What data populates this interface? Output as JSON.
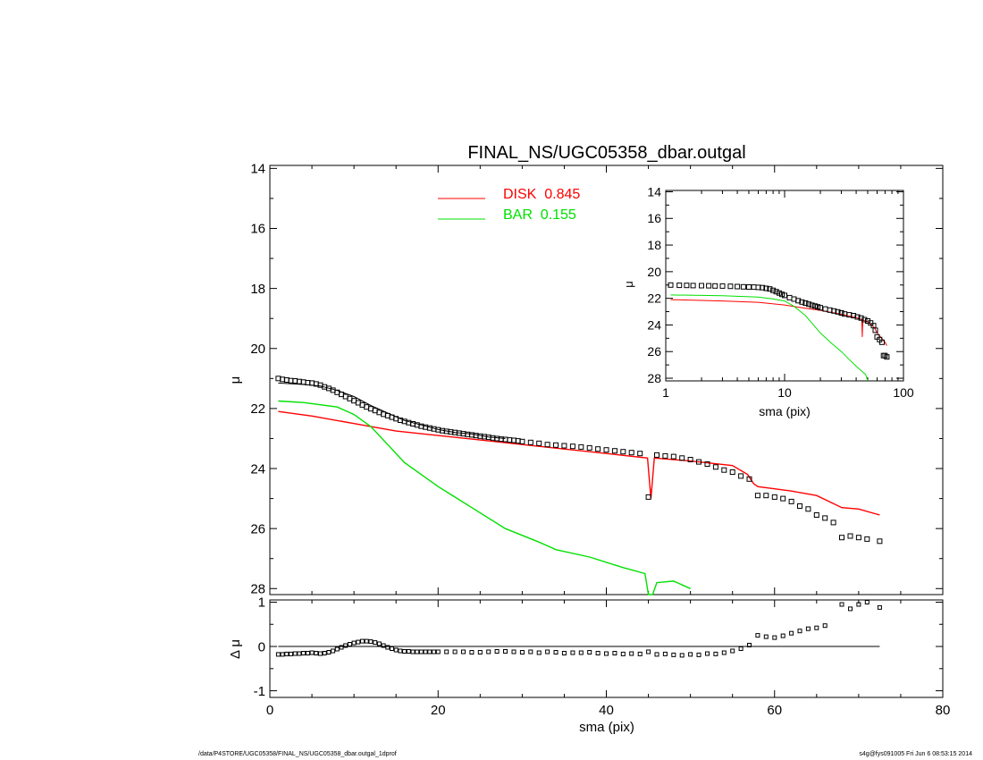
{
  "footer": {
    "left": "/data/P4STORE/UGC05358/FINAL_NS/UGC05358_dbar.outgal_1dprof",
    "right": "s4g@fys091005  Fri Jun  6 08:53:15 2014"
  },
  "colors": {
    "disk": "#ff0000",
    "bar": "#00e000",
    "data": "#000000"
  },
  "chart_data": [
    {
      "id": "main",
      "type": "line",
      "title": "FINAL_NS/UGC05358_dbar.outgal",
      "xlabel": "",
      "ylabel": "μ",
      "xlim": [
        0,
        80
      ],
      "ylim": [
        28.2,
        13.9
      ],
      "y_inverted": true,
      "xticks": [
        0,
        20,
        40,
        60,
        80
      ],
      "yticks": [
        14,
        16,
        18,
        20,
        22,
        24,
        26,
        28
      ],
      "legend": {
        "placement": "top-center",
        "entries": [
          {
            "label": "DISK  0.845",
            "color": "#ff0000"
          },
          {
            "label": "BAR  0.155",
            "color": "#00e000"
          }
        ]
      },
      "series": [
        {
          "name": "DISK",
          "color": "#ff0000",
          "style": "line",
          "x": [
            1,
            5,
            10,
            15,
            20,
            25,
            30,
            35,
            40,
            44.9,
            45.3,
            45.7,
            50,
            55,
            56.8,
            57.5,
            58,
            62,
            65,
            68,
            70,
            72.5
          ],
          "y": [
            22.1,
            22.25,
            22.5,
            22.75,
            22.9,
            23.05,
            23.2,
            23.35,
            23.5,
            23.65,
            25.0,
            23.65,
            23.75,
            23.9,
            24.2,
            24.5,
            24.6,
            24.75,
            24.9,
            25.3,
            25.35,
            25.55
          ]
        },
        {
          "name": "BAR",
          "color": "#00e000",
          "style": "line",
          "x": [
            1,
            4,
            8,
            10,
            12,
            14,
            16,
            20,
            24,
            28,
            32,
            32.8,
            34,
            38,
            42,
            44.6,
            45,
            45.5,
            46,
            48,
            50
          ],
          "y": [
            21.75,
            21.8,
            21.95,
            22.2,
            22.6,
            23.2,
            23.8,
            24.6,
            25.3,
            26.0,
            26.45,
            26.55,
            26.7,
            26.95,
            27.3,
            27.5,
            28.2,
            28.2,
            27.8,
            27.75,
            28.0
          ]
        },
        {
          "name": "total",
          "color": "#000000",
          "style": "thin-line",
          "x": [
            1,
            4,
            6,
            8,
            10,
            12,
            14,
            16,
            18,
            20,
            22,
            24,
            26,
            28
          ],
          "y": [
            21.15,
            21.2,
            21.25,
            21.4,
            21.6,
            21.9,
            22.15,
            22.4,
            22.55,
            22.7,
            22.8,
            22.85,
            22.95,
            23.0
          ]
        },
        {
          "name": "data",
          "color": "#000000",
          "style": "markers",
          "x": [
            1,
            1.5,
            2,
            2.5,
            3,
            3.5,
            4,
            4.5,
            5,
            5.5,
            6,
            6.5,
            7,
            7.5,
            8,
            8.5,
            9,
            9.5,
            10,
            10.5,
            11,
            11.5,
            12,
            12.5,
            13,
            13.5,
            14,
            14.5,
            15,
            15.5,
            16,
            16.5,
            17,
            17.5,
            18,
            18.5,
            19,
            19.5,
            20,
            20.5,
            21,
            21.5,
            22,
            22.5,
            23,
            23.5,
            24,
            24.5,
            25,
            25.5,
            26,
            26.5,
            27,
            27.5,
            28,
            28.5,
            29,
            29.5,
            30,
            31,
            32,
            33,
            34,
            35,
            36,
            37,
            38,
            39,
            40,
            41,
            42,
            43,
            44,
            45,
            46,
            47,
            48,
            49,
            50,
            51,
            52,
            53,
            54,
            55,
            56,
            57,
            58,
            59,
            60,
            61,
            62,
            63,
            64,
            65,
            66,
            67,
            68,
            69,
            70,
            71,
            72.5
          ],
          "y": [
            21.0,
            21.03,
            21.05,
            21.07,
            21.08,
            21.1,
            21.12,
            21.14,
            21.15,
            21.18,
            21.22,
            21.28,
            21.33,
            21.39,
            21.46,
            21.53,
            21.6,
            21.67,
            21.74,
            21.81,
            21.88,
            21.95,
            22.01,
            22.07,
            22.13,
            22.19,
            22.24,
            22.29,
            22.34,
            22.39,
            22.43,
            22.47,
            22.51,
            22.55,
            22.59,
            22.62,
            22.65,
            22.68,
            22.71,
            22.74,
            22.76,
            22.78,
            22.8,
            22.82,
            22.84,
            22.86,
            22.88,
            22.9,
            22.92,
            22.94,
            22.96,
            22.98,
            23.0,
            23.02,
            23.03,
            23.05,
            23.06,
            23.08,
            23.1,
            23.13,
            23.16,
            23.2,
            23.22,
            23.24,
            23.26,
            23.28,
            23.31,
            23.35,
            23.38,
            23.41,
            23.44,
            23.47,
            23.5,
            24.95,
            23.55,
            23.58,
            23.6,
            23.65,
            23.7,
            23.78,
            23.85,
            23.95,
            24.05,
            24.12,
            24.25,
            24.35,
            24.9,
            24.9,
            24.95,
            25.0,
            25.1,
            25.25,
            25.35,
            25.55,
            25.65,
            25.8,
            26.3,
            26.25,
            26.3,
            26.35,
            26.42
          ]
        }
      ]
    },
    {
      "id": "inset",
      "type": "line",
      "xlabel": "sma (pix)",
      "ylabel": "μ",
      "xscale": "log",
      "xlim": [
        1,
        100
      ],
      "ylim": [
        28.2,
        13.9
      ],
      "y_inverted": true,
      "xticks": [
        1,
        10,
        100
      ],
      "yticks": [
        14,
        16,
        18,
        20,
        22,
        24,
        26,
        28
      ],
      "series": [
        {
          "name": "DISK",
          "color": "#ff0000",
          "style": "line",
          "x": [
            1.1,
            3,
            6,
            10,
            15,
            20,
            30,
            40,
            44.6,
            45,
            45.5,
            50,
            57,
            60,
            70,
            72.5
          ],
          "y": [
            22.1,
            22.2,
            22.3,
            22.5,
            22.75,
            22.9,
            23.2,
            23.45,
            23.6,
            24.9,
            23.65,
            23.75,
            24.2,
            24.6,
            25.3,
            25.55
          ]
        },
        {
          "name": "BAR",
          "color": "#00e000",
          "style": "line",
          "x": [
            1.1,
            3,
            6,
            8,
            10,
            12,
            15,
            20,
            25,
            30,
            35,
            40,
            45,
            48,
            50
          ],
          "y": [
            21.75,
            21.8,
            21.9,
            22.05,
            22.2,
            22.6,
            23.3,
            24.6,
            25.4,
            26.0,
            26.6,
            27.1,
            27.5,
            27.7,
            28.2
          ]
        },
        {
          "name": "data",
          "color": "#000000",
          "style": "markers",
          "x": [
            1.1,
            1.3,
            1.5,
            1.7,
            2,
            2.3,
            2.6,
            3,
            3.5,
            4,
            4.5,
            5,
            5.5,
            6,
            6.5,
            7,
            7.5,
            8,
            8.5,
            9,
            9.5,
            10,
            11,
            12,
            13,
            14,
            15,
            16,
            17,
            18,
            19,
            20,
            22,
            24,
            26,
            28,
            30,
            32,
            35,
            38,
            41,
            44,
            47,
            50,
            53,
            56,
            58,
            60,
            63,
            66,
            68,
            70,
            72.5
          ],
          "y": [
            21.0,
            21.02,
            21.03,
            21.04,
            21.05,
            21.06,
            21.07,
            21.08,
            21.1,
            21.12,
            21.14,
            21.15,
            21.16,
            21.18,
            21.2,
            21.25,
            21.3,
            21.4,
            21.5,
            21.6,
            21.7,
            21.78,
            21.95,
            22.06,
            22.18,
            22.28,
            22.36,
            22.44,
            22.52,
            22.58,
            22.64,
            22.71,
            22.8,
            22.88,
            22.95,
            23.02,
            23.1,
            23.18,
            23.24,
            23.3,
            23.4,
            23.48,
            23.6,
            23.7,
            23.85,
            24.05,
            24.4,
            24.9,
            25.1,
            25.3,
            26.3,
            26.3,
            26.4
          ]
        }
      ]
    },
    {
      "id": "residual",
      "type": "scatter",
      "xlabel": "sma (pix)",
      "ylabel": "Δ μ",
      "xlim": [
        0,
        80
      ],
      "ylim": [
        -1.15,
        1.05
      ],
      "xticks": [
        0,
        20,
        40,
        60,
        80
      ],
      "yticks": [
        -1,
        0,
        1
      ],
      "zero_line": {
        "x": [
          1,
          72.5
        ],
        "y": 0
      },
      "series": [
        {
          "name": "residual",
          "color": "#000000",
          "style": "markers",
          "x": [
            1,
            1.5,
            2,
            2.5,
            3,
            3.5,
            4,
            4.5,
            5,
            5.5,
            6,
            6.5,
            7,
            7.5,
            8,
            8.5,
            9,
            9.5,
            10,
            10.5,
            11,
            11.5,
            12,
            12.5,
            13,
            13.5,
            14,
            14.5,
            15,
            15.5,
            16,
            16.5,
            17,
            17.5,
            18,
            18.5,
            19,
            19.5,
            20,
            21,
            22,
            23,
            24,
            25,
            26,
            27,
            28,
            29,
            30,
            31,
            32,
            33,
            34,
            35,
            36,
            37,
            38,
            39,
            40,
            41,
            42,
            43,
            44,
            45,
            46,
            47,
            48,
            49,
            50,
            51,
            52,
            53,
            54,
            55,
            56,
            57,
            58,
            59,
            60,
            61,
            62,
            63,
            64,
            65,
            66,
            68,
            69,
            70,
            71,
            72.5
          ],
          "y": [
            -0.18,
            -0.18,
            -0.17,
            -0.17,
            -0.16,
            -0.16,
            -0.15,
            -0.15,
            -0.14,
            -0.15,
            -0.16,
            -0.15,
            -0.13,
            -0.1,
            -0.06,
            -0.02,
            0.02,
            0.05,
            0.08,
            0.1,
            0.12,
            0.12,
            0.11,
            0.09,
            0.06,
            0.02,
            -0.02,
            -0.05,
            -0.08,
            -0.1,
            -0.11,
            -0.11,
            -0.12,
            -0.12,
            -0.12,
            -0.12,
            -0.12,
            -0.12,
            -0.12,
            -0.12,
            -0.12,
            -0.12,
            -0.13,
            -0.13,
            -0.12,
            -0.11,
            -0.11,
            -0.12,
            -0.13,
            -0.12,
            -0.14,
            -0.12,
            -0.13,
            -0.15,
            -0.14,
            -0.14,
            -0.13,
            -0.15,
            -0.16,
            -0.15,
            -0.17,
            -0.16,
            -0.17,
            -0.12,
            -0.18,
            -0.17,
            -0.19,
            -0.2,
            -0.18,
            -0.19,
            -0.16,
            -0.17,
            -0.14,
            -0.1,
            -0.05,
            0.03,
            0.25,
            0.22,
            0.2,
            0.24,
            0.3,
            0.35,
            0.4,
            0.42,
            0.47,
            0.95,
            0.85,
            0.95,
            1.0,
            0.88
          ]
        }
      ]
    }
  ]
}
